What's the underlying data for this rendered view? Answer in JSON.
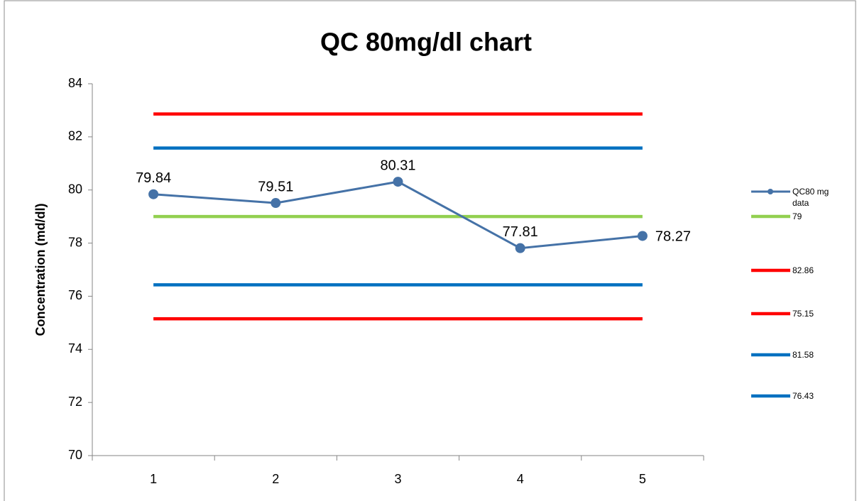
{
  "chart_data": {
    "type": "line",
    "title": "QC 80mg/dl chart",
    "y_label": "Concentration (md/dl)",
    "categories": [
      "1",
      "2",
      "3",
      "4",
      "5"
    ],
    "ylim": [
      70,
      84
    ],
    "yticks": [
      70,
      72,
      74,
      76,
      78,
      80,
      82,
      84
    ],
    "grid": false,
    "legend": "right",
    "series": [
      {
        "name": "QC80 mg data",
        "color": "#4572a7",
        "values": [
          79.84,
          79.51,
          80.31,
          77.81,
          78.27
        ],
        "markers": true,
        "data_labels": true
      },
      {
        "name": "79",
        "color": "#92d050",
        "values": [
          79,
          79,
          79,
          79,
          79
        ]
      },
      {
        "name": "82.86",
        "color": "#ff0000",
        "values": [
          82.86,
          82.86,
          82.86,
          82.86,
          82.86
        ]
      },
      {
        "name": "75.15",
        "color": "#ff0000",
        "values": [
          75.15,
          75.15,
          75.15,
          75.15,
          75.15
        ]
      },
      {
        "name": "81.58",
        "color": "#0070c0",
        "values": [
          81.58,
          81.58,
          81.58,
          81.58,
          81.58
        ]
      },
      {
        "name": "76.43",
        "color": "#0070c0",
        "values": [
          76.43,
          76.43,
          76.43,
          76.43,
          76.43
        ]
      }
    ]
  }
}
